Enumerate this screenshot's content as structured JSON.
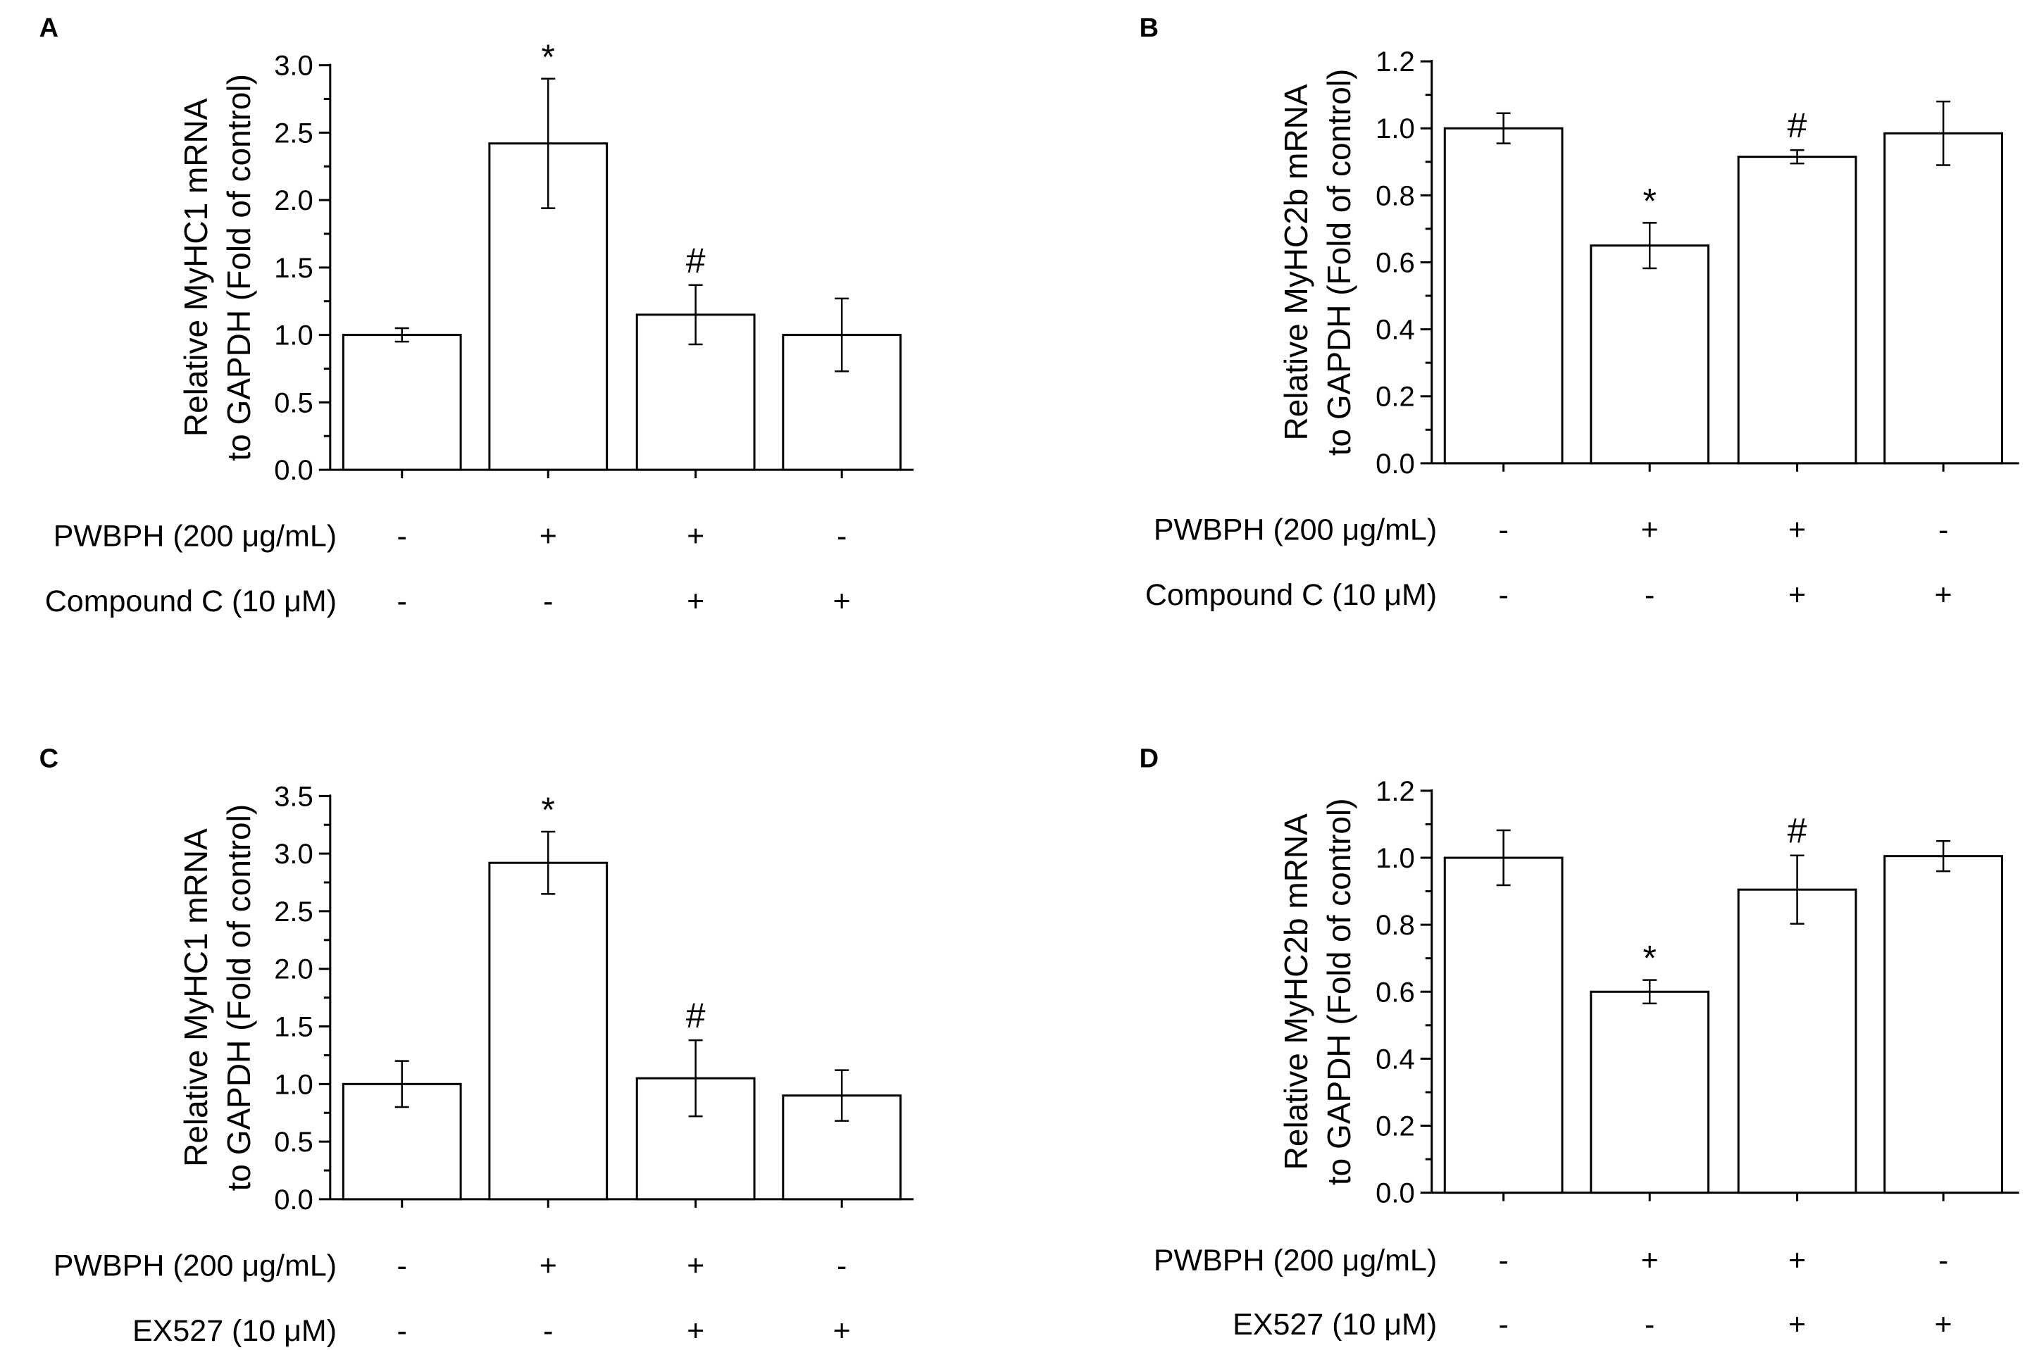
{
  "chart_data": [
    {
      "type": "bar",
      "panel": "A",
      "ylabel_line1": "Relative MyHC1 mRNA",
      "ylabel_line2": "to GAPDH (Fold of control)",
      "ylim": [
        0,
        3.0
      ],
      "yticks": [
        "0.0",
        "0.5",
        "1.0",
        "1.5",
        "2.0",
        "2.5",
        "3.0"
      ],
      "ytick_values": [
        0,
        0.5,
        1.0,
        1.5,
        2.0,
        2.5,
        3.0
      ],
      "values": [
        1.0,
        2.42,
        1.15,
        1.0
      ],
      "errors": [
        0.05,
        0.48,
        0.22,
        0.27
      ],
      "annotations": [
        "",
        "*",
        "#",
        ""
      ],
      "conditions": [
        {
          "label": "PWBPH (200 μg/mL)",
          "signs": [
            "-",
            "+",
            "+",
            "-"
          ]
        },
        {
          "label": "Compound C (10 μM)",
          "signs": [
            "-",
            "-",
            "+",
            "+"
          ]
        }
      ]
    },
    {
      "type": "bar",
      "panel": "B",
      "ylabel_line1": "Relative MyHC2b mRNA",
      "ylabel_line2": "to GAPDH (Fold of control)",
      "ylim": [
        0,
        1.2
      ],
      "yticks": [
        "0.0",
        "0.2",
        "0.4",
        "0.6",
        "0.8",
        "1.0",
        "1.2"
      ],
      "ytick_values": [
        0,
        0.2,
        0.4,
        0.6,
        0.8,
        1.0,
        1.2
      ],
      "values": [
        1.0,
        0.65,
        0.915,
        0.985
      ],
      "errors": [
        0.045,
        0.068,
        0.02,
        0.095
      ],
      "annotations": [
        "",
        "*",
        "#",
        ""
      ],
      "conditions": [
        {
          "label": "PWBPH (200 μg/mL)",
          "signs": [
            "-",
            "+",
            "+",
            "-"
          ]
        },
        {
          "label": "Compound C (10 μM)",
          "signs": [
            "-",
            "-",
            "+",
            "+"
          ]
        }
      ]
    },
    {
      "type": "bar",
      "panel": "C",
      "ylabel_line1": "Relative MyHC1 mRNA",
      "ylabel_line2": "to GAPDH (Fold of control)",
      "ylim": [
        0,
        3.5
      ],
      "yticks": [
        "0.0",
        "0.5",
        "1.0",
        "1.5",
        "2.0",
        "2.5",
        "3.0",
        "3.5"
      ],
      "ytick_values": [
        0,
        0.5,
        1.0,
        1.5,
        2.0,
        2.5,
        3.0,
        3.5
      ],
      "values": [
        1.0,
        2.92,
        1.05,
        0.9
      ],
      "errors": [
        0.2,
        0.27,
        0.33,
        0.22
      ],
      "annotations": [
        "",
        "*",
        "#",
        ""
      ],
      "conditions": [
        {
          "label": "PWBPH (200 μg/mL)",
          "signs": [
            "-",
            "+",
            "+",
            "-"
          ]
        },
        {
          "label": "EX527 (10 μM)",
          "signs": [
            "-",
            "-",
            "+",
            "+"
          ]
        }
      ]
    },
    {
      "type": "bar",
      "panel": "D",
      "ylabel_line1": "Relative MyHC2b mRNA",
      "ylabel_line2": "to GAPDH (Fold of control)",
      "ylim": [
        0,
        1.2
      ],
      "yticks": [
        "0.0",
        "0.2",
        "0.4",
        "0.6",
        "0.8",
        "1.0",
        "1.2"
      ],
      "ytick_values": [
        0,
        0.2,
        0.4,
        0.6,
        0.8,
        1.0,
        1.2
      ],
      "values": [
        1.0,
        0.6,
        0.905,
        1.005
      ],
      "errors": [
        0.082,
        0.035,
        0.102,
        0.045
      ],
      "annotations": [
        "",
        "*",
        "#",
        ""
      ],
      "conditions": [
        {
          "label": "PWBPH (200 μg/mL)",
          "signs": [
            "-",
            "+",
            "+",
            "-"
          ]
        },
        {
          "label": "EX527 (10 μM)",
          "signs": [
            "-",
            "-",
            "+",
            "+"
          ]
        }
      ]
    }
  ]
}
